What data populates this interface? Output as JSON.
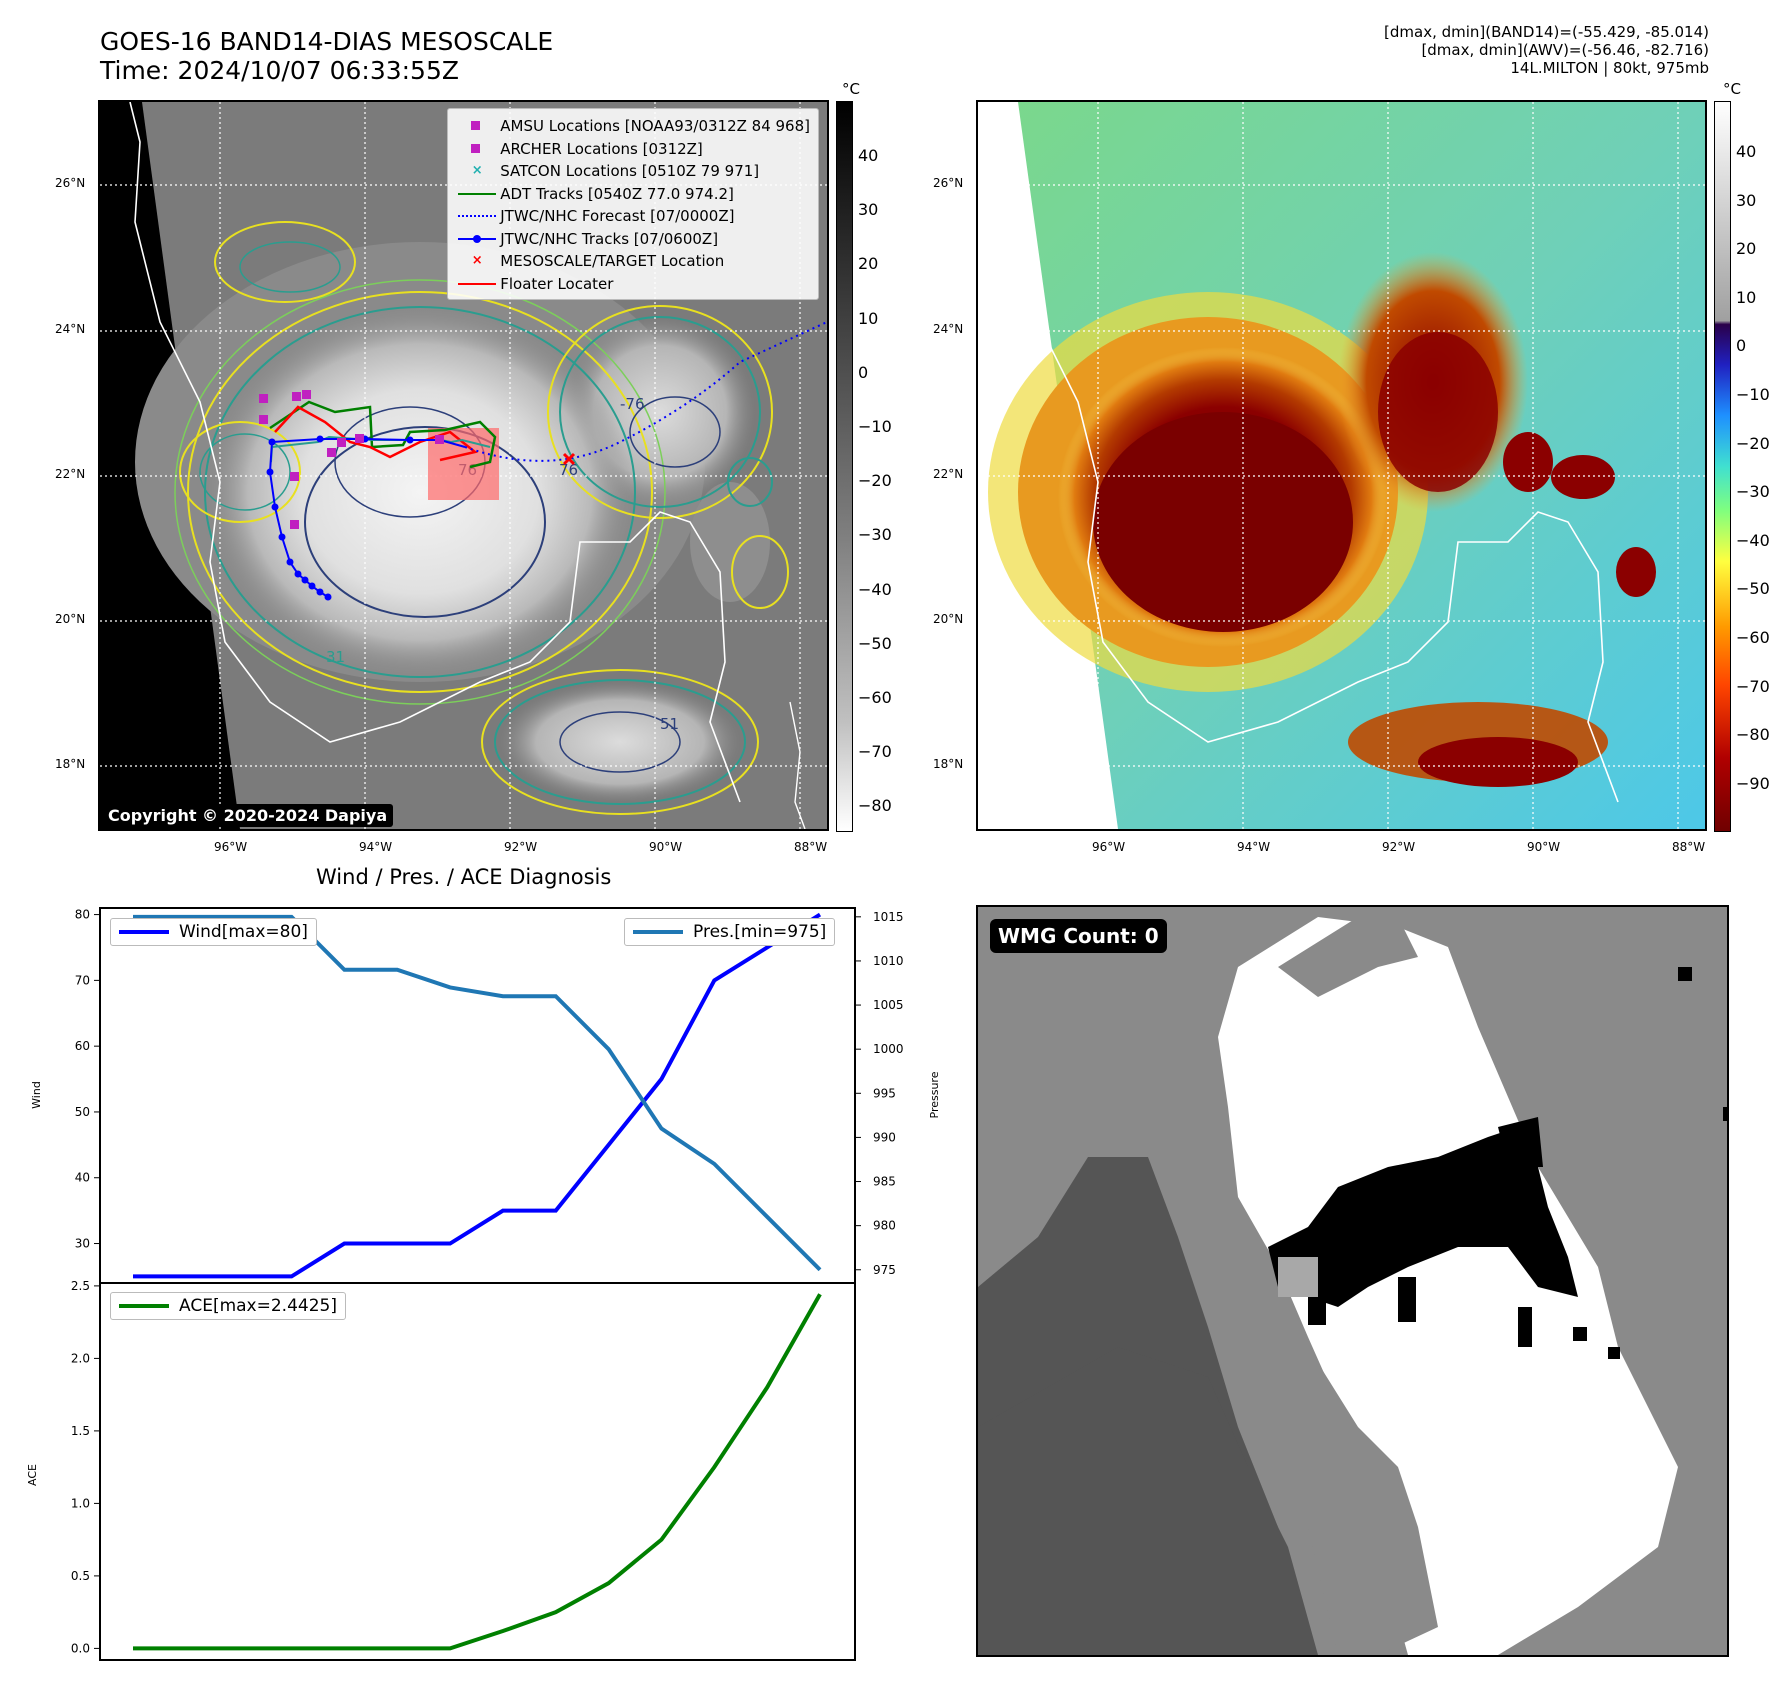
{
  "header": {
    "title_line1": "GOES-16 BAND14-DIAS MESOSCALE",
    "title_line2": "Time: 2024/10/07 06:33:55Z",
    "right_line1": "[dmax, dmin](BAND14)=(-55.429, -85.014)",
    "right_line2": "[dmax, dmin](AWV)=(-56.46, -82.716)",
    "right_line3": "14L.MILTON | 80kt, 975mb"
  },
  "map": {
    "lat_labels": [
      "26°N",
      "24°N",
      "22°N",
      "20°N",
      "18°N"
    ],
    "lon_labels": [
      "96°W",
      "94°W",
      "92°W",
      "90°W",
      "88°W"
    ],
    "copyright": "Copyright © 2020-2024 Dapiya",
    "contour_labels": [
      "76",
      "-76",
      "76",
      "51",
      "31"
    ],
    "legend": [
      {
        "label": "AMSU Locations [NOAA93/0312Z 84 968]",
        "symbol": "square",
        "color": "#c020c0"
      },
      {
        "label": "ARCHER Locations [0312Z]",
        "symbol": "square",
        "color": "#c020c0"
      },
      {
        "label": "SATCON Locations [0510Z 79 971]",
        "symbol": "x",
        "color": "#20b0b0"
      },
      {
        "label": "ADT Tracks [0540Z 77.0 974.2]",
        "symbol": "line",
        "color": "#008000"
      },
      {
        "label": "JTWC/NHC Forecast [07/0000Z]",
        "symbol": "dotted",
        "color": "#0000ff"
      },
      {
        "label": "JTWC/NHC Tracks [07/0600Z]",
        "symbol": "line-dot",
        "color": "#0000ff"
      },
      {
        "label": "MESOSCALE/TARGET Location",
        "symbol": "x",
        "color": "#ff0000"
      },
      {
        "label": "Floater Locater",
        "symbol": "line",
        "color": "#ff0000"
      }
    ]
  },
  "colorbar_gray": {
    "unit": "°C",
    "ticks": [
      "40",
      "30",
      "20",
      "10",
      "0",
      "−10",
      "−20",
      "−30",
      "−40",
      "−50",
      "−60",
      "−70",
      "−80"
    ]
  },
  "colorbar_color": {
    "unit": "°C",
    "ticks": [
      "40",
      "30",
      "20",
      "10",
      "0",
      "−10",
      "−20",
      "−30",
      "−40",
      "−50",
      "−60",
      "−70",
      "−80",
      "−90"
    ]
  },
  "diagnosis": {
    "title": "Wind / Pres. / ACE Diagnosis"
  },
  "wmg": {
    "label": "WMG Count: 0"
  },
  "colors": {
    "wind": "#0000ff",
    "pressure": "#1f77b4",
    "ace": "#008000"
  },
  "chart_data": [
    {
      "type": "line",
      "title": "Wind / Pres. / ACE Diagnosis",
      "ylabel": "Wind",
      "y2label": "Pressure",
      "ylim": [
        24,
        81
      ],
      "y2lim": [
        973.5,
        1016
      ],
      "yticks": [
        30,
        40,
        50,
        60,
        70,
        80
      ],
      "y2ticks": [
        975,
        980,
        985,
        990,
        995,
        1000,
        1005,
        1010,
        1015
      ],
      "x": [
        0,
        1,
        2,
        3,
        4,
        5,
        6,
        7,
        8,
        9,
        10,
        11,
        12,
        13
      ],
      "series": [
        {
          "name": "Wind[max=80]",
          "axis": "left",
          "values": [
            25,
            25,
            25,
            25,
            30,
            30,
            30,
            35,
            35,
            45,
            55,
            70,
            75,
            80
          ]
        },
        {
          "name": "Pres.[min=975]",
          "axis": "right",
          "values": [
            1015,
            1015,
            1015,
            1015,
            1009,
            1009,
            1007,
            1006,
            1006,
            1000,
            991,
            987,
            981,
            975
          ]
        }
      ]
    },
    {
      "type": "line",
      "ylabel": "ACE",
      "ylim": [
        -0.08,
        2.52
      ],
      "yticks": [
        "0.0",
        "0.5",
        "1.0",
        "1.5",
        "2.0",
        "2.5"
      ],
      "x": [
        0,
        1,
        2,
        3,
        4,
        5,
        6,
        7,
        8,
        9,
        10,
        11,
        12,
        13
      ],
      "series": [
        {
          "name": "ACE[max=2.4425]",
          "values": [
            0,
            0,
            0,
            0,
            0,
            0,
            0,
            0.12,
            0.25,
            0.45,
            0.75,
            1.25,
            1.8,
            2.4425
          ]
        }
      ]
    }
  ]
}
